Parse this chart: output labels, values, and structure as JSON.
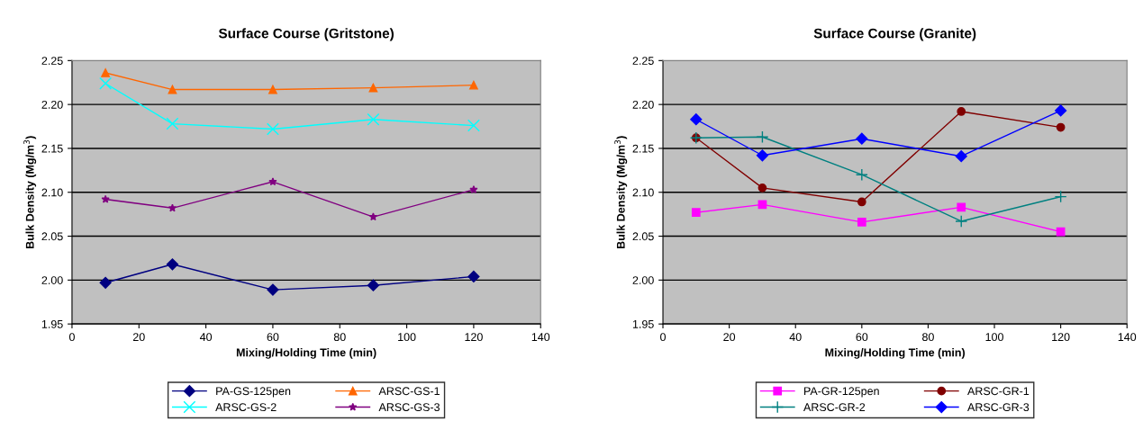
{
  "chart_data": [
    {
      "type": "line",
      "title": "Surface Course (Gritstone)",
      "xlabel": "Mixing/Holding Time (min)",
      "ylabel": "Bulk Density (Mg/m$^{3}$)",
      "x": [
        10,
        30,
        60,
        90,
        120
      ],
      "xlim": [
        0,
        140
      ],
      "xticks": [
        0,
        20,
        40,
        60,
        80,
        100,
        120,
        140
      ],
      "ylim": [
        1.95,
        2.25
      ],
      "yticks": [
        1.95,
        {
          "value": 2.0,
          "label": "2.00"
        },
        2.05,
        {
          "value": 2.1,
          "label": "2.10"
        },
        2.15,
        {
          "value": 2.2,
          "label": "2.20"
        },
        2.25
      ],
      "grid": "y",
      "legend": "bottom",
      "series": [
        {
          "name": "PA-GS-125pen",
          "color": "#000080",
          "marker": "diamond",
          "values": [
            1.997,
            2.018,
            1.989,
            1.994,
            2.004
          ]
        },
        {
          "name": "ARSC-GS-1",
          "color": "#ff6600",
          "marker": "triangle",
          "values": [
            2.236,
            2.217,
            2.217,
            2.219,
            2.222
          ]
        },
        {
          "name": "ARSC-GS-2",
          "color": "#00ffff",
          "marker": "cross",
          "values": [
            2.224,
            2.178,
            2.172,
            2.183,
            2.176
          ]
        },
        {
          "name": "ARSC-GS-3",
          "color": "#800080",
          "marker": "star",
          "values": [
            2.092,
            2.082,
            2.112,
            2.072,
            2.103
          ]
        }
      ]
    },
    {
      "type": "line",
      "title": "Surface Course (Granite)",
      "xlabel": "Mixing/Holding Time (min)",
      "ylabel": "Bulk Density (Mg/m$^{3}$)",
      "x": [
        10,
        30,
        60,
        90,
        120
      ],
      "xlim": [
        0,
        140
      ],
      "xticks": [
        0,
        20,
        40,
        60,
        80,
        100,
        120,
        140
      ],
      "ylim": [
        1.95,
        2.25
      ],
      "yticks": [
        1.95,
        {
          "value": 2.0,
          "label": "2.00"
        },
        2.05,
        {
          "value": 2.1,
          "label": "2.10"
        },
        2.15,
        {
          "value": 2.2,
          "label": "2.20"
        },
        2.25
      ],
      "grid": "y",
      "legend": "bottom",
      "series": [
        {
          "name": "PA-GR-125pen",
          "color": "#ff00ff",
          "marker": "square",
          "values": [
            2.077,
            2.086,
            2.066,
            2.083,
            2.055
          ]
        },
        {
          "name": "ARSC-GR-1",
          "color": "#800000",
          "marker": "circle",
          "values": [
            2.162,
            2.105,
            2.089,
            2.192,
            2.174
          ]
        },
        {
          "name": "ARSC-GR-2",
          "color": "#008080",
          "marker": "plus",
          "values": [
            2.162,
            2.163,
            2.12,
            2.067,
            2.095
          ]
        },
        {
          "name": "ARSC-GR-3",
          "color": "#0000ff",
          "marker": "diamond",
          "values": [
            2.183,
            2.142,
            2.161,
            2.141,
            2.193
          ]
        }
      ]
    }
  ]
}
